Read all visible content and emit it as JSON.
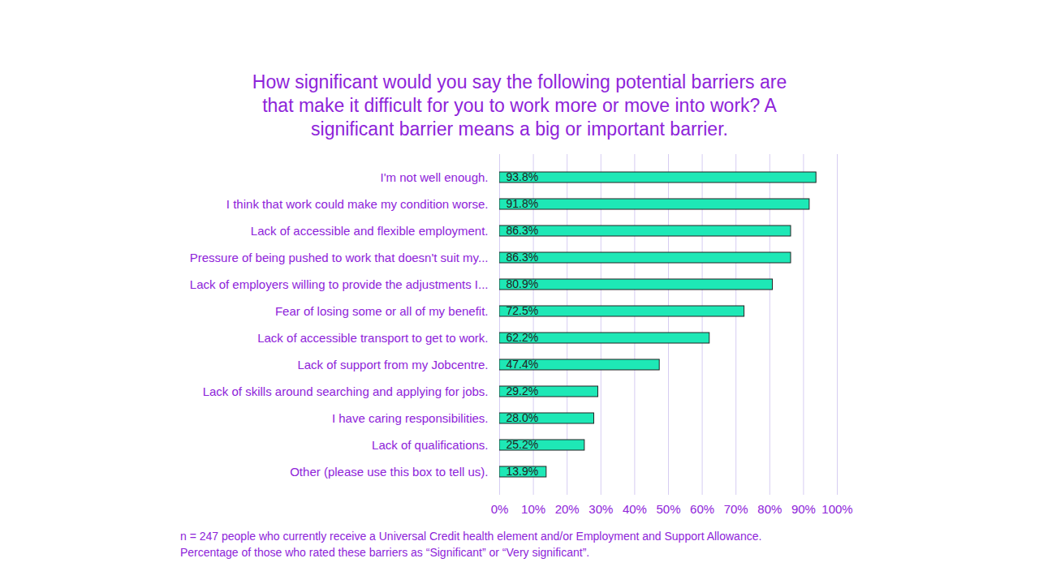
{
  "chart_data": {
    "type": "bar",
    "title": "How significant would you say the following potential barriers are that make it difficult for you to work more or move into work? A significant barrier means a big or important barrier.",
    "caption": [
      "n = 247 people who currently receive a Universal Credit health element and/or Employment and Support Allowance.",
      "Percentage of those who rated these barriers as “Significant” or “Very significant”."
    ],
    "orientation": "horizontal",
    "categories": [
      "I'm not well enough.",
      "I think that work could make my condition worse.",
      "Lack of accessible and flexible employment.",
      "Pressure of being pushed to work that doesn't suit my...",
      "Lack of employers willing to provide the adjustments I...",
      "Fear of losing some or all of my benefit.",
      "Lack of accessible transport to get to work.",
      "Lack of support from my Jobcentre.",
      "Lack of skills around searching and applying for jobs.",
      "I have caring responsibilities.",
      "Lack of qualifications.",
      "Other (please use this box to tell us)."
    ],
    "values": [
      93.8,
      91.8,
      86.3,
      86.3,
      80.9,
      72.5,
      62.2,
      47.4,
      29.2,
      28.0,
      25.2,
      13.9
    ],
    "value_labels": [
      "93.8%",
      "91.8%",
      "86.3%",
      "86.3%",
      "80.9%",
      "72.5%",
      "62.2%",
      "47.4%",
      "29.2%",
      "28.0%",
      "25.2%",
      "13.9%"
    ],
    "data_labels": true,
    "color": "#1ee8b6",
    "xlim": [
      0,
      100
    ],
    "xticks": [
      {
        "value": 0,
        "label": "0%"
      },
      {
        "value": 10,
        "label": "10%"
      },
      {
        "value": 20,
        "label": "20%"
      },
      {
        "value": 30,
        "label": "30%"
      },
      {
        "value": 40,
        "label": "40%"
      },
      {
        "value": 50,
        "label": "50%"
      },
      {
        "value": 60,
        "label": "60%"
      },
      {
        "value": 70,
        "label": "70%"
      },
      {
        "value": 80,
        "label": "80%"
      },
      {
        "value": 90,
        "label": "90%"
      },
      {
        "value": 100,
        "label": "100%"
      }
    ],
    "grid": true
  }
}
